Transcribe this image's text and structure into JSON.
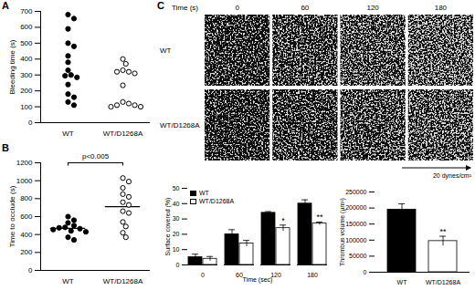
{
  "chart_data": [
    {
      "panel": "A",
      "type": "strip",
      "y_label": "Bleeding time (s)",
      "ylim": [
        0,
        700
      ],
      "yticks": [
        0,
        100,
        200,
        300,
        400,
        500,
        600,
        700
      ],
      "series": [
        {
          "name": "WT",
          "color": "#000000",
          "marker": "circle",
          "values": [
            680,
            655,
            590,
            500,
            480,
            420,
            380,
            330,
            300,
            295,
            285,
            240,
            180,
            160,
            130,
            110
          ]
        },
        {
          "name": "WT/D1268A",
          "color": "#000000",
          "marker": "open_circle",
          "values": [
            400,
            370,
            330,
            320,
            320,
            310,
            235,
            130,
            120,
            110,
            110,
            100,
            100
          ]
        }
      ]
    },
    {
      "panel": "B",
      "type": "strip",
      "y_label": "Time to occlude (s)",
      "annotation": "p<0.005",
      "ylim": [
        0,
        1200
      ],
      "yticks": [
        0,
        200,
        400,
        600,
        800,
        1000,
        1200
      ],
      "series": [
        {
          "name": "WT",
          "color": "#000000",
          "marker": "circle",
          "mean": 470,
          "values": [
            600,
            560,
            530,
            500,
            480,
            475,
            465,
            455,
            440,
            430,
            370,
            340
          ]
        },
        {
          "name": "WT/D1268A",
          "color": "#000000",
          "marker": "open_circle",
          "mean": 710,
          "values": [
            1030,
            990,
            920,
            850,
            820,
            760,
            730,
            660,
            640,
            540,
            490,
            420,
            370
          ]
        }
      ]
    },
    {
      "type": "bar",
      "x_label": "Time (sec)",
      "y_label": "Surface covered (%)",
      "categories": [
        0,
        60,
        120,
        180
      ],
      "legend": "top-left",
      "ylim": [
        0,
        50
      ],
      "yticks": [
        0,
        10,
        20,
        30,
        40,
        50
      ],
      "series": [
        {
          "name": "WT",
          "color": "#000000",
          "values": [
            5,
            20,
            34,
            40
          ],
          "errors": [
            2,
            3,
            0.8,
            2.5
          ]
        },
        {
          "name": "WT/D1268A",
          "color": "#ffffff",
          "values": [
            4,
            14,
            24,
            27
          ],
          "errors": [
            1.5,
            2,
            2,
            1
          ],
          "significance": [
            null,
            null,
            "*",
            "**"
          ]
        }
      ]
    },
    {
      "type": "bar",
      "y_label": "Thrombus volume (µm³)",
      "categories": [
        "WT",
        "WT/D1268A"
      ],
      "values": [
        195000,
        97000
      ],
      "errors": [
        18000,
        15000
      ],
      "colors": [
        "#000000",
        "#ffffff"
      ],
      "significance": [
        null,
        "**"
      ],
      "ylim": [
        0,
        250000
      ],
      "yticks": [
        0,
        50000,
        100000,
        150000,
        200000,
        250000
      ]
    }
  ],
  "micrographs": {
    "panel": "C",
    "time_label": "Time (s)",
    "times": [
      0,
      60,
      120,
      180
    ],
    "rows": [
      "WT",
      "WT/D1268A"
    ],
    "flow_label": "20 dynes/cm²"
  }
}
